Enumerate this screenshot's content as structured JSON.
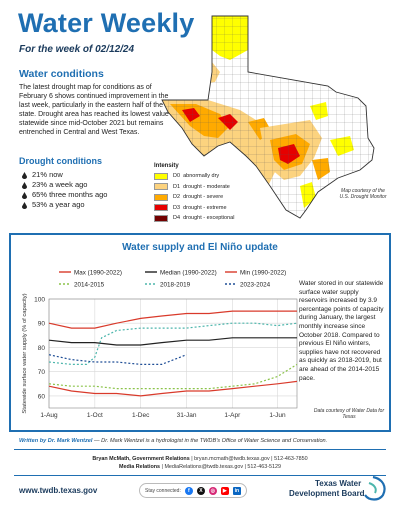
{
  "header": {
    "title": "Water Weekly",
    "subtitle": "For the week of 02/12/24"
  },
  "conditions": {
    "heading": "Water conditions",
    "body": "The latest drought map for conditions as of February 6 shows continued improvement in the last week, particularly in the eastern half of the state. Drought area has reached its lowest value statewide since mid-October 2021 but remains entrenched in Central and West Texas."
  },
  "drought": {
    "heading": "Drought conditions",
    "items": [
      "21% now",
      "23% a week ago",
      "65% three months ago",
      "53% a year ago"
    ]
  },
  "map": {
    "legend_title": "Intensity",
    "legend": [
      {
        "code": "D0",
        "label": "abnormally dry",
        "color": "#ffff00"
      },
      {
        "code": "D1",
        "label": "drought - moderate",
        "color": "#fcd37f"
      },
      {
        "code": "D2",
        "label": "drought - severe",
        "color": "#ffaa00"
      },
      {
        "code": "D3",
        "label": "drought - extreme",
        "color": "#e60000"
      },
      {
        "code": "D4",
        "label": "drought - exceptional",
        "color": "#730000"
      }
    ],
    "credit": "Map courtesy of the U.S. Drought Monitor"
  },
  "panel": {
    "title": "Water supply and El Niño update",
    "text": "Water stored in our statewide surface water supply reservoirs increased by 3.9 percentage points of capacity during January, the largest monthly increase since October 2018. Compared to previous El Niño winters, supplies have not recovered as quickly as 2018-2019, but are ahead of the 2014-2015 pace.",
    "credit": "Data courtesy of Water Data for Texas"
  },
  "chart_data": {
    "type": "line",
    "title": "",
    "xlabel": "",
    "ylabel": "Statewide surface water supply (% of capacity)",
    "x_ticks": [
      "1-Aug",
      "1-Oct",
      "1-Dec",
      "31-Jan",
      "1-Apr",
      "1-Jun"
    ],
    "x_tick_days": [
      0,
      61,
      122,
      183,
      244,
      304
    ],
    "x_range": [
      0,
      330
    ],
    "ylim": [
      55,
      100
    ],
    "y_ticks": [
      60,
      70,
      80,
      90,
      100
    ],
    "grid": true,
    "legend_position": "top",
    "series": [
      {
        "name": "Max (1990-2022)",
        "color": "#d93a2b",
        "dash": "",
        "x": [
          0,
          30,
          61,
          90,
          122,
          150,
          183,
          213,
          244,
          274,
          304,
          330
        ],
        "y": [
          90,
          88,
          88,
          90,
          92,
          93,
          94,
          94,
          95,
          95,
          95,
          95
        ]
      },
      {
        "name": "Median (1990-2022)",
        "color": "#222222",
        "dash": "",
        "x": [
          0,
          30,
          61,
          90,
          122,
          150,
          183,
          213,
          244,
          274,
          304,
          330
        ],
        "y": [
          83,
          82,
          82,
          81,
          81,
          82,
          83,
          83,
          84,
          84,
          84,
          84
        ]
      },
      {
        "name": "Min (1990-2022)",
        "color": "#d93a2b",
        "dash": "",
        "x": [
          0,
          30,
          61,
          90,
          122,
          150,
          183,
          213,
          244,
          274,
          304,
          330
        ],
        "y": [
          64,
          62,
          61,
          61,
          60,
          61,
          62,
          62,
          63,
          64,
          65,
          66
        ]
      },
      {
        "name": "2014-2015",
        "color": "#8bc34a",
        "dash": "2,2",
        "x": [
          0,
          30,
          61,
          90,
          122,
          150,
          183,
          213,
          244,
          274,
          304,
          330
        ],
        "y": [
          65,
          64,
          64,
          63,
          63,
          63,
          63,
          63,
          64,
          65,
          68,
          73
        ]
      },
      {
        "name": "2018-2019",
        "color": "#4db6ac",
        "dash": "2,2",
        "x": [
          0,
          30,
          50,
          61,
          70,
          90,
          122,
          150,
          183,
          213,
          244,
          274,
          304,
          330
        ],
        "y": [
          74,
          73,
          73,
          76,
          84,
          87,
          88,
          88,
          88,
          89,
          90,
          90,
          89,
          90
        ]
      },
      {
        "name": "2023-2024",
        "color": "#1f4e96",
        "dash": "2,2",
        "x": [
          0,
          30,
          61,
          90,
          122,
          150,
          183
        ],
        "y": [
          77,
          75,
          74,
          74,
          73,
          73,
          77
        ]
      }
    ]
  },
  "footer": {
    "author_label": "Written by Dr. Mark Wentzel",
    "author_desc": "— Dr. Mark Wentzel is a hydrologist in the TWDB's Office of Water Science and Conservation.",
    "contact1_name": "Bryan McMath, Government Relations",
    "contact1_info": "| bryan.mcmath@twdb.texas.gov | 512-463-7850",
    "contact2_name": "Media Relations",
    "contact2_info": "| MediaRelations@twdb.texas.gov | 512-463-5129",
    "url": "www.twdb.texas.gov",
    "stay_connected": "Stay connected:",
    "logo_line1": "Texas Water",
    "logo_line2": "Development Board",
    "social_icons": [
      "facebook-icon",
      "x-icon",
      "instagram-icon",
      "youtube-icon",
      "linkedin-icon"
    ]
  }
}
